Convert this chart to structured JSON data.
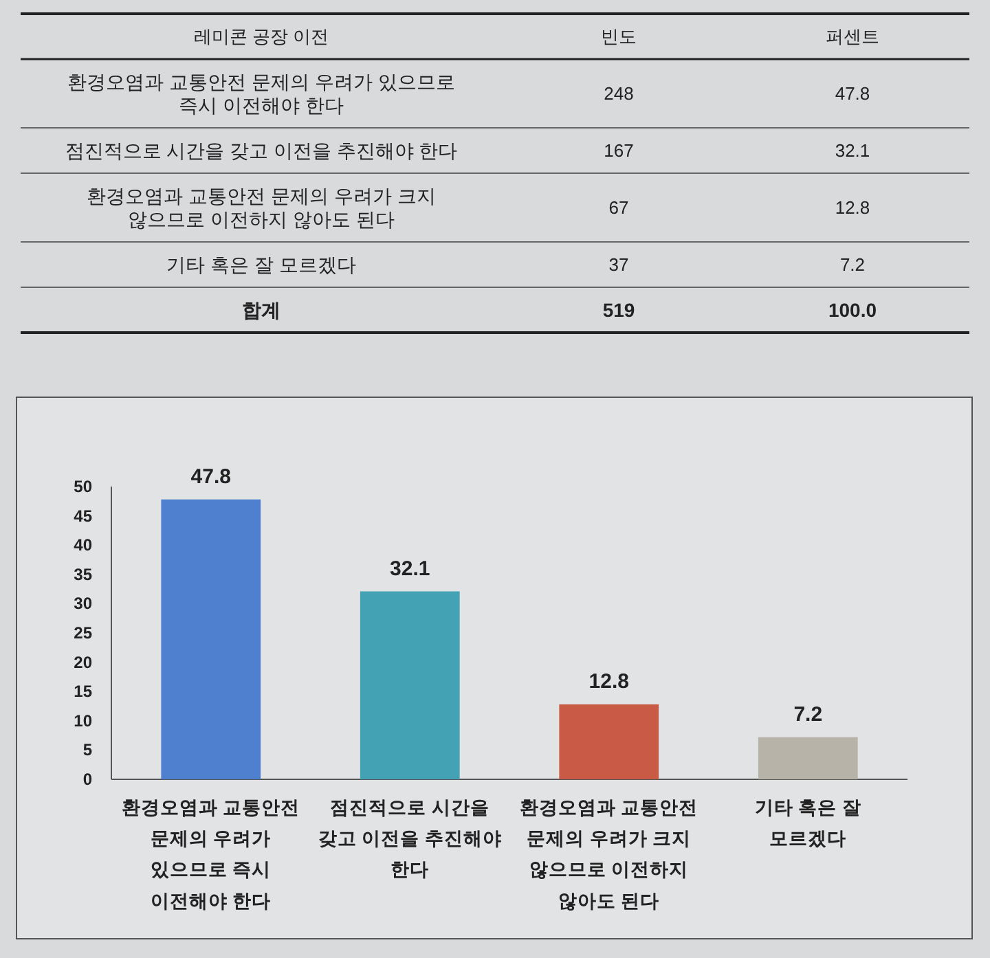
{
  "chart_data": [
    {
      "type": "other",
      "xlabel": "레미콘 공장 이전",
      "categories": [
        "환경오염과 교통안전 문제의 우려가 있으므로 즉시 이전해야 한다",
        "점진적으로 시간을 갖고 이전을 추진해야 한다",
        "환경오염과 교통안전 문제의 우려가 크지 않으므로 이전하지 않아도 된다",
        "기타 혹은 잘 모르겠다"
      ],
      "series": [
        {
          "name": "빈도",
          "values": [
            248,
            167,
            67,
            37
          ]
        },
        {
          "name": "퍼센트",
          "values": [
            47.8,
            32.1,
            12.8,
            7.2
          ]
        }
      ],
      "data_labels": true,
      "annotations": [
        "합계",
        "519",
        "100.0"
      ]
    },
    {
      "type": "bar",
      "categories": [
        "환경오염과 교통안전 문제의 우려가 있으므로 즉시 이전해야 한다",
        "점진적으로 시간을 갖고 이전을 추진해야 한다",
        "환경오염과 교통안전 문제의 우려가 크지 않으므로 이전하지 않아도 된다",
        "기타 혹은 잘 모르겠다"
      ],
      "values": [
        47.8,
        32.1,
        12.8,
        7.2
      ],
      "colors": [
        "#4f7fcf",
        "#44a2b5",
        "#c95a45",
        "#b7b3a8"
      ],
      "ylim": [
        0,
        50
      ],
      "yticks": [
        0,
        5,
        10,
        15,
        20,
        25,
        30,
        35,
        40,
        45,
        50
      ],
      "data_labels": true
    }
  ]
}
